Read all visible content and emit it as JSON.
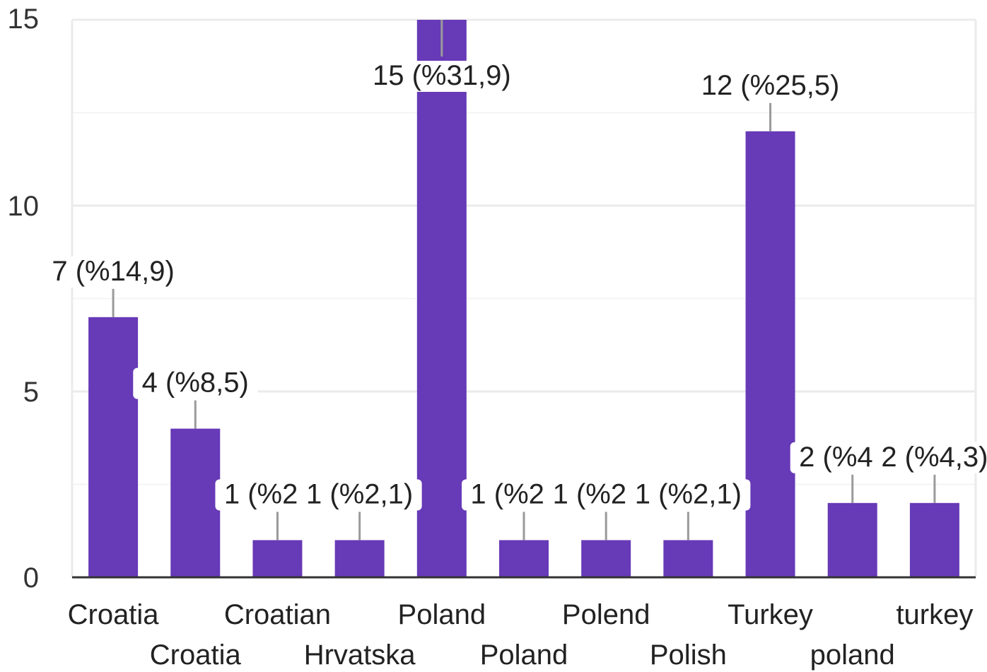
{
  "chart_data": {
    "type": "bar",
    "title": "",
    "xlabel": "",
    "ylabel": "",
    "ylim": [
      0,
      15
    ],
    "yticks": [
      0,
      5,
      10,
      15
    ],
    "grid": true,
    "legend": "none",
    "bar_color": "#673ab7",
    "categories": [
      "Croatia",
      "Croatia",
      "Croatian",
      "Hrvatska",
      "Poland",
      "Poland",
      "Polend",
      "Polish",
      "Turkey",
      "poland",
      "turkey"
    ],
    "values": [
      7,
      4,
      1,
      1,
      15,
      1,
      1,
      1,
      12,
      2,
      2
    ],
    "data_labels": [
      "7 (%14,9)",
      "4 (%8,5)",
      "1 (%2,1)",
      "1 (%2,1)",
      "15 (%31,9)",
      "1 (%2,1)",
      "1 (%2,1)",
      "1 (%2,1)",
      "12 (%25,5)",
      "2 (%4,3)",
      "2 (%4,3)"
    ]
  }
}
